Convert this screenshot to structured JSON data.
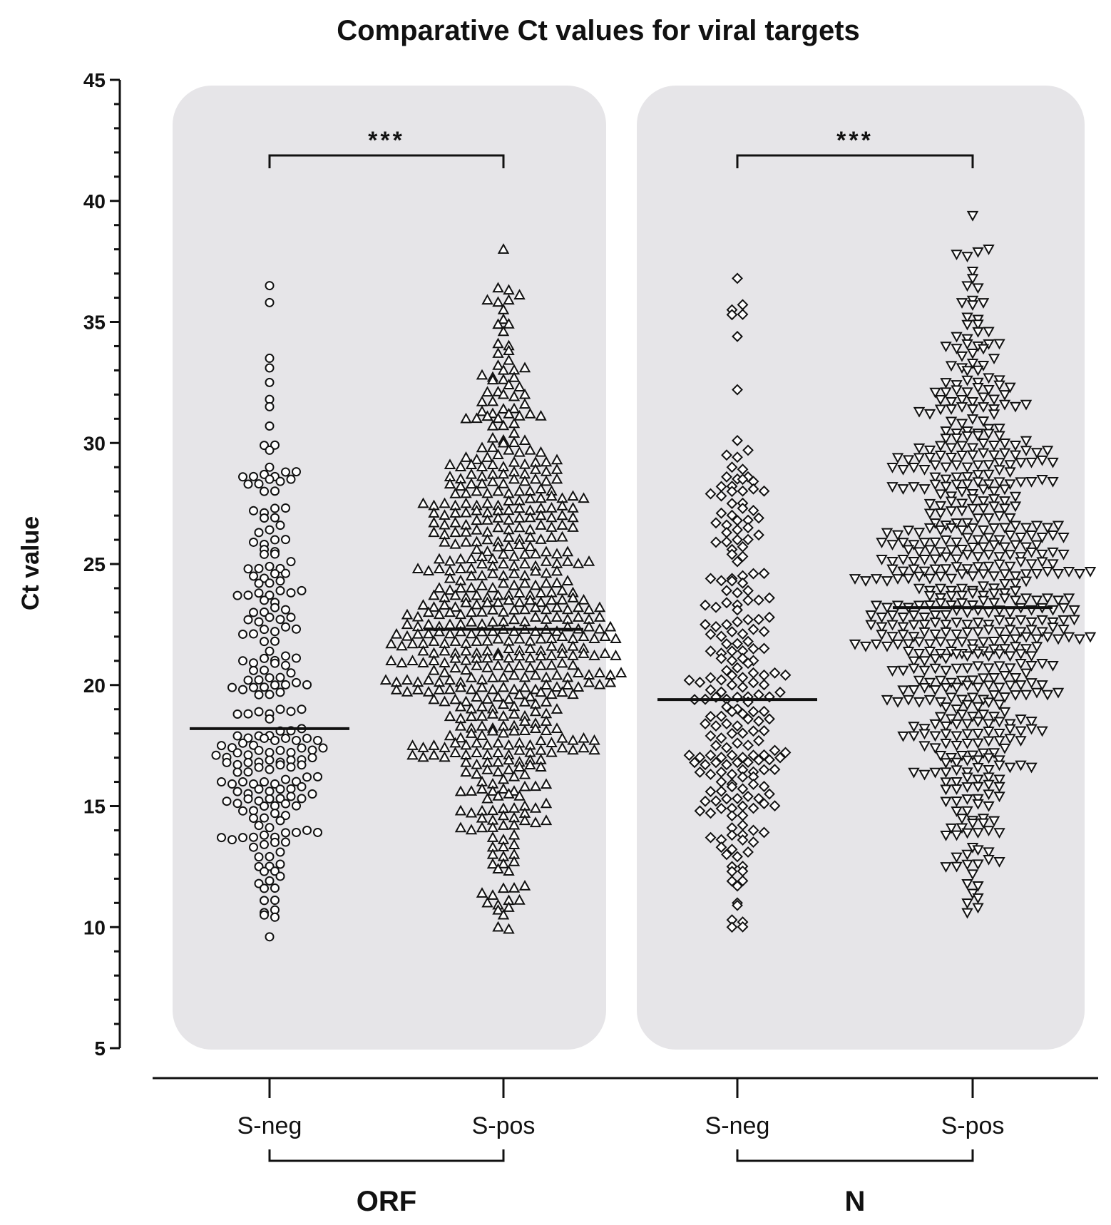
{
  "chart_data": {
    "type": "scatter",
    "subtype": "dot-plot (beeswarm) with median lines",
    "title": "Comparative Ct values for viral targets",
    "ylabel": "Ct value",
    "xlabel": "",
    "ylim": [
      5,
      45
    ],
    "yticks": [
      5,
      10,
      15,
      20,
      25,
      30,
      35,
      40,
      45
    ],
    "groups": [
      {
        "name": "ORF",
        "significance": "***",
        "series": [
          {
            "name": "S-neg",
            "marker": "circle",
            "median": 18.2,
            "min": 9.6,
            "max": 36.5,
            "n_approx": 230
          },
          {
            "name": "S-pos",
            "marker": "triangle-up",
            "median": 22.3,
            "min": 10.0,
            "max": 38.0,
            "n_approx": 620
          }
        ]
      },
      {
        "name": "N",
        "significance": "***",
        "series": [
          {
            "name": "S-neg",
            "marker": "diamond",
            "median": 19.4,
            "min": 10.0,
            "max": 36.8,
            "n_approx": 230
          },
          {
            "name": "S-pos",
            "marker": "triangle-down",
            "median": 23.2,
            "min": 10.6,
            "max": 39.4,
            "n_approx": 620
          }
        ]
      }
    ]
  }
}
